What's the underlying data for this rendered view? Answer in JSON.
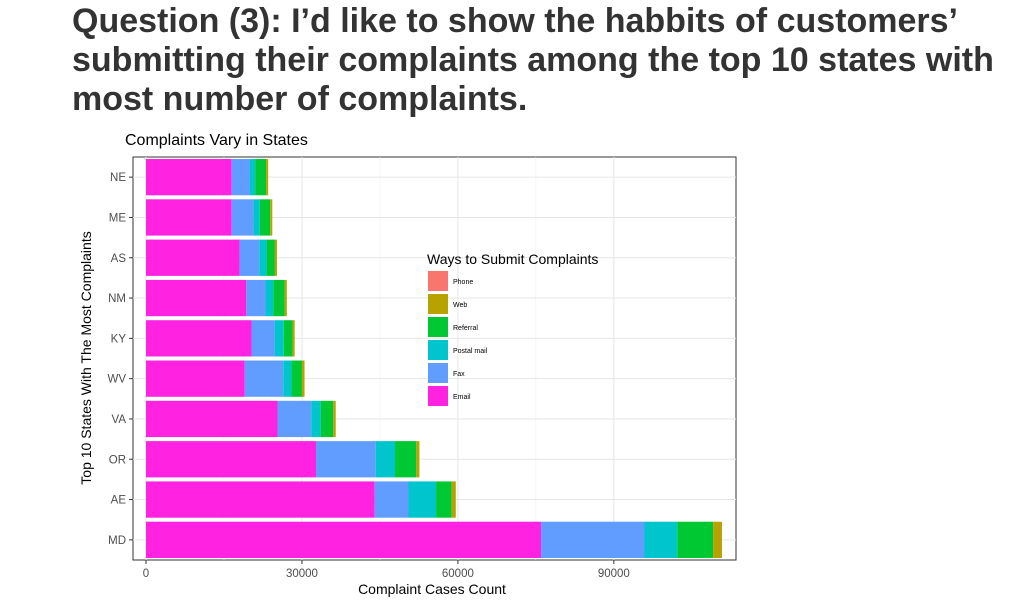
{
  "slide": {
    "title_lines": [
      "Question (3): I’d like to show the habbits of customers’",
      "submitting their complaints among the top 10 states with",
      "most number of complaints."
    ]
  },
  "chart_data": {
    "type": "bar",
    "orientation": "horizontal",
    "stacked": true,
    "title": "Complaints Vary in States",
    "xlabel": "Complaint Cases Count",
    "ylabel": "Top 10 States With The Most Complaints",
    "categories": [
      "NE",
      "ME",
      "AS",
      "NM",
      "KY",
      "WV",
      "VA",
      "OR",
      "AE",
      "MD"
    ],
    "x_ticks": [
      0,
      30000,
      60000,
      90000
    ],
    "x_tick_labels": [
      "0",
      "30000",
      "60000",
      "90000"
    ],
    "xlim": [
      -2500,
      113500
    ],
    "grid": true,
    "legend_title": "Ways to Submit Complaints",
    "legend_position": "center-right inside",
    "legend_order": [
      "Phone",
      "Web",
      "Referral",
      "Postal mail",
      "Fax",
      "Email"
    ],
    "series": [
      {
        "name": "Email",
        "color": "#FF22E0",
        "values": [
          16500,
          16500,
          18000,
          19300,
          20300,
          19000,
          25300,
          32700,
          44000,
          76000
        ]
      },
      {
        "name": "Fax",
        "color": "#619CFF",
        "values": [
          3500,
          4200,
          3800,
          3700,
          4500,
          7400,
          6500,
          11500,
          6500,
          19900
        ]
      },
      {
        "name": "Postal mail",
        "color": "#00C5CD",
        "values": [
          1000,
          1200,
          1400,
          1500,
          1700,
          1600,
          1800,
          3700,
          5300,
          6300
        ]
      },
      {
        "name": "Referral",
        "color": "#00C832",
        "values": [
          2100,
          2000,
          1600,
          2200,
          1700,
          2000,
          2400,
          4100,
          3000,
          6900
        ]
      },
      {
        "name": "Web",
        "color": "#B8A200",
        "values": [
          400,
          400,
          400,
          400,
          400,
          500,
          500,
          600,
          800,
          1700
        ]
      },
      {
        "name": "Phone",
        "color": "#F8766D",
        "values": [
          0,
          0,
          0,
          0,
          0,
          0,
          0,
          0,
          0,
          0
        ]
      }
    ]
  }
}
